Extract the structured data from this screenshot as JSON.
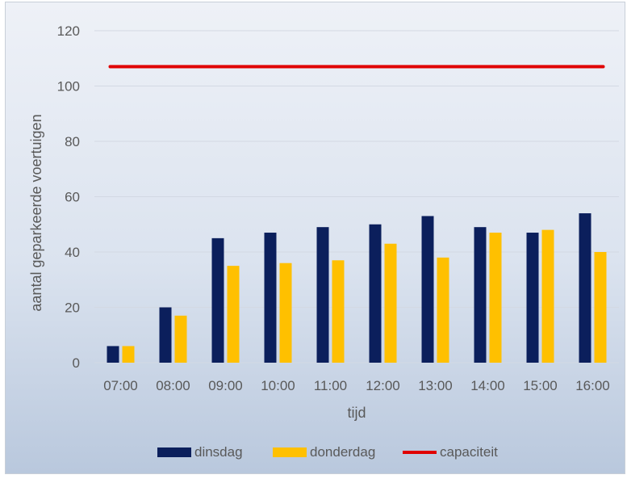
{
  "chart_data": {
    "type": "bar",
    "title": "",
    "xlabel": "tijd",
    "ylabel": "aantal geparkeerde voertuigen",
    "categories": [
      "07:00",
      "08:00",
      "09:00",
      "10:00",
      "11:00",
      "12:00",
      "13:00",
      "14:00",
      "15:00",
      "16:00"
    ],
    "series": [
      {
        "name": "dinsdag",
        "type": "bar",
        "color": "#0b1f5c",
        "values": [
          6,
          20,
          45,
          47,
          49,
          50,
          53,
          49,
          47,
          54
        ]
      },
      {
        "name": "donderdag",
        "type": "bar",
        "color": "#ffc000",
        "values": [
          6,
          17,
          35,
          36,
          37,
          43,
          38,
          47,
          48,
          40
        ]
      },
      {
        "name": "capaciteit",
        "type": "line",
        "color": "#e00000",
        "values": [
          107,
          107,
          107,
          107,
          107,
          107,
          107,
          107,
          107,
          107
        ]
      }
    ],
    "ylim": [
      0,
      120
    ],
    "yticks": [
      "0",
      "20",
      "40",
      "60",
      "80",
      "100",
      "120"
    ],
    "grid": true,
    "legend_position": "bottom"
  }
}
